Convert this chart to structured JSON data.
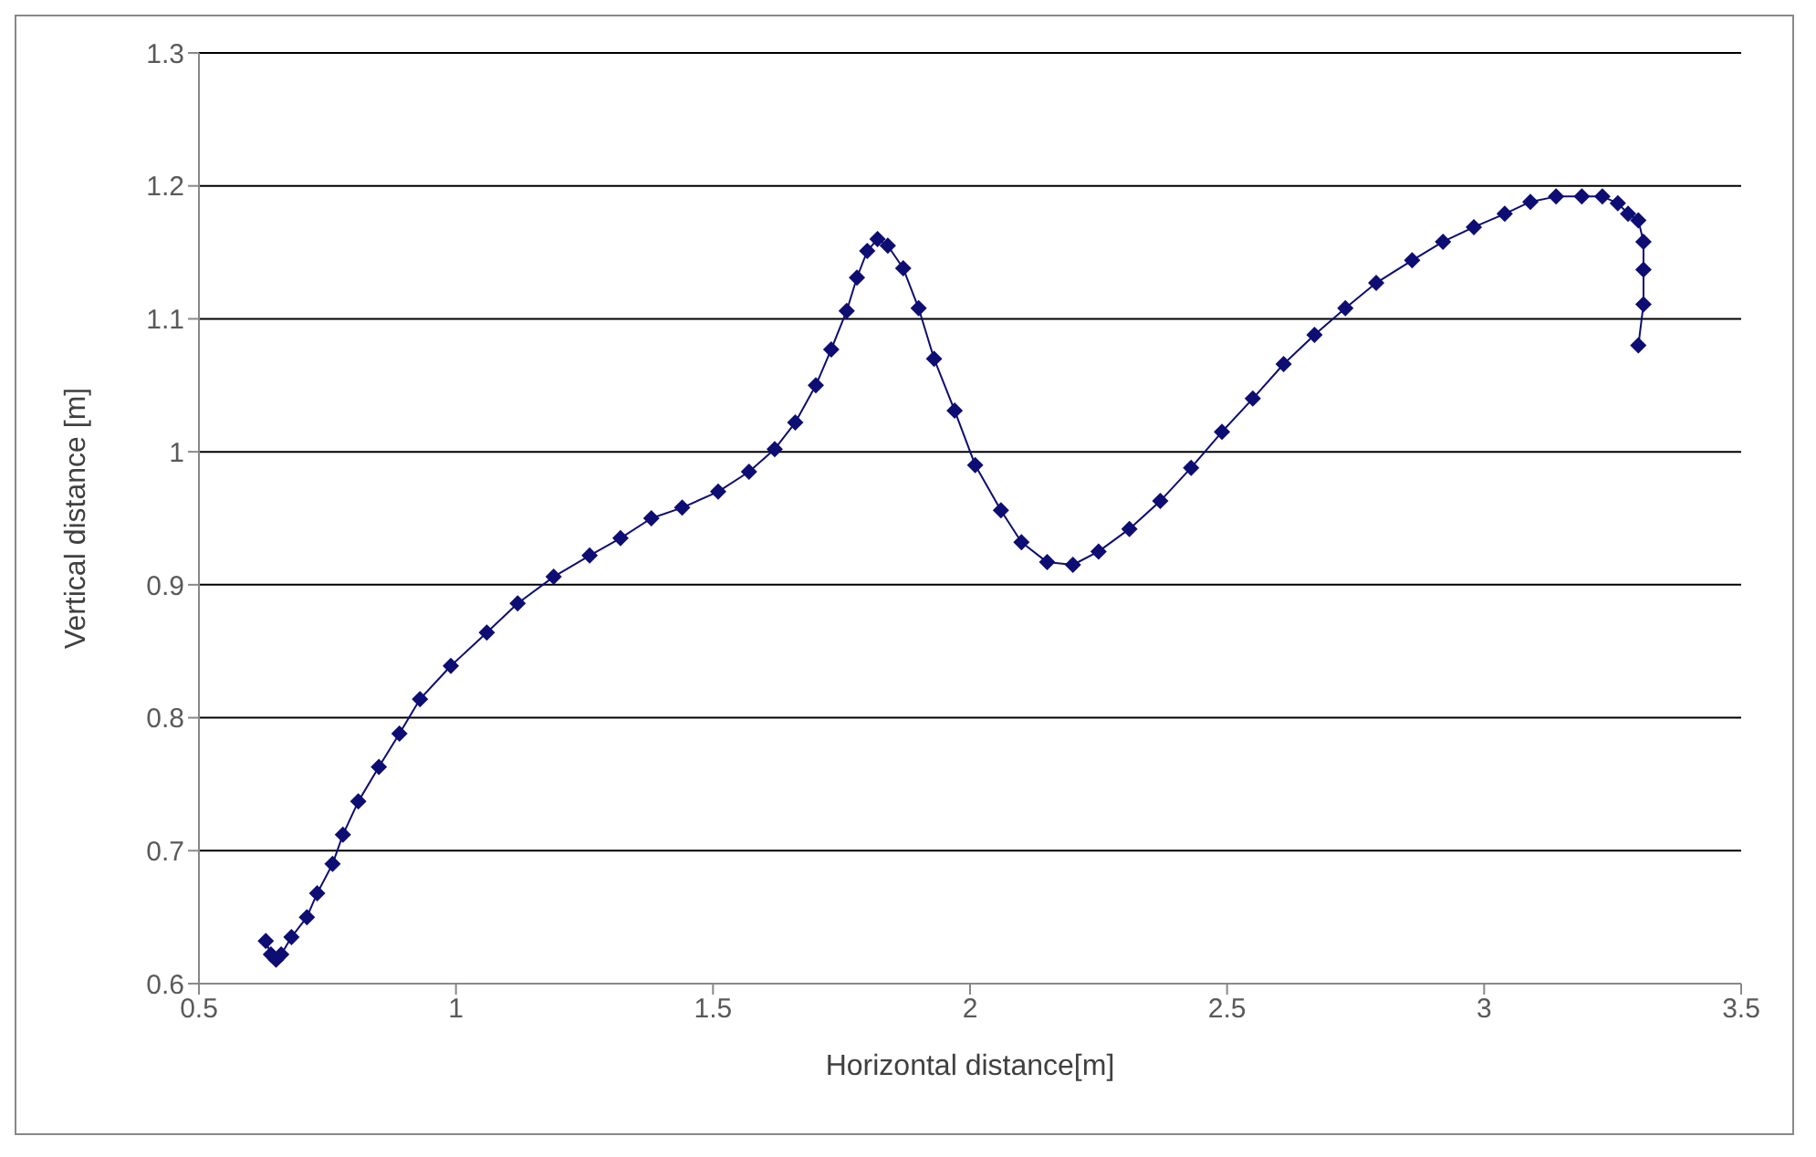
{
  "chart_data": {
    "type": "line",
    "xlabel": "Horizontal distance[m]",
    "ylabel": "Vertical distance [m]",
    "x": [
      0.63,
      0.64,
      0.65,
      0.66,
      0.68,
      0.71,
      0.73,
      0.76,
      0.78,
      0.81,
      0.85,
      0.89,
      0.93,
      0.99,
      1.06,
      1.12,
      1.19,
      1.26,
      1.32,
      1.38,
      1.44,
      1.51,
      1.57,
      1.62,
      1.66,
      1.7,
      1.73,
      1.76,
      1.78,
      1.8,
      1.82,
      1.84,
      1.87,
      1.9,
      1.93,
      1.97,
      2.01,
      2.06,
      2.1,
      2.15,
      2.2,
      2.25,
      2.31,
      2.37,
      2.43,
      2.49,
      2.55,
      2.61,
      2.67,
      2.73,
      2.79,
      2.86,
      2.92,
      2.98,
      3.04,
      3.09,
      3.14,
      3.19,
      3.23,
      3.26,
      3.28,
      3.3,
      3.31,
      3.31,
      3.31,
      3.3
    ],
    "series": [
      {
        "color": "#0d0d73",
        "values": [
          0.632,
          0.622,
          0.618,
          0.622,
          0.635,
          0.65,
          0.668,
          0.69,
          0.712,
          0.737,
          0.763,
          0.788,
          0.814,
          0.839,
          0.864,
          0.886,
          0.906,
          0.922,
          0.935,
          0.95,
          0.958,
          0.97,
          0.985,
          1.002,
          1.022,
          1.05,
          1.077,
          1.106,
          1.131,
          1.151,
          1.16,
          1.155,
          1.138,
          1.108,
          1.07,
          1.031,
          0.99,
          0.956,
          0.932,
          0.917,
          0.915,
          0.925,
          0.942,
          0.963,
          0.988,
          1.015,
          1.04,
          1.066,
          1.088,
          1.108,
          1.127,
          1.144,
          1.158,
          1.169,
          1.179,
          1.188,
          1.192,
          1.192,
          1.192,
          1.187,
          1.179,
          1.174,
          1.158,
          1.137,
          1.111,
          1.08
        ]
      }
    ],
    "xlim": [
      0.5,
      3.5
    ],
    "xticks": [
      0.5,
      1,
      1.5,
      2,
      2.5,
      3,
      3.5
    ],
    "ylim": [
      0.6,
      1.3
    ],
    "yticks": [
      0.6,
      0.7,
      0.8,
      0.9,
      1,
      1.1,
      1.2,
      1.3
    ],
    "grid": "y",
    "marker": "diamond",
    "line_style": "solid"
  }
}
